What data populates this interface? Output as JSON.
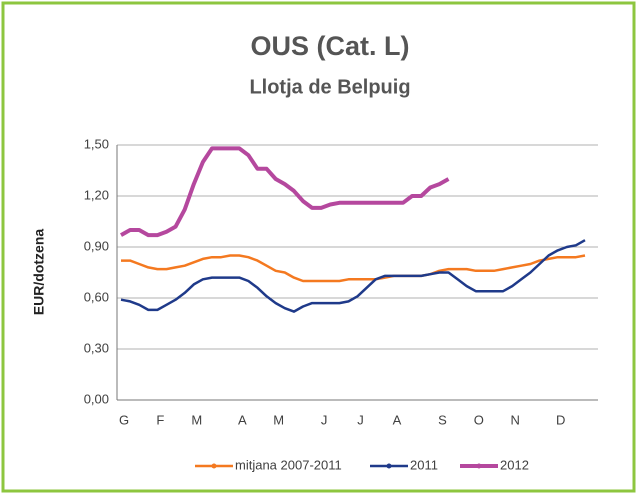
{
  "chart_data": {
    "type": "line",
    "title": "OUS (Cat. L)",
    "subtitle": "Llotja de Belpuig",
    "y_label": "EUR/dotzena",
    "categories": [
      "G",
      null,
      null,
      null,
      "F",
      null,
      null,
      null,
      "M",
      null,
      null,
      null,
      null,
      "A",
      null,
      null,
      null,
      "M",
      null,
      null,
      null,
      null,
      "J",
      null,
      null,
      null,
      "J",
      null,
      null,
      null,
      "A",
      null,
      null,
      null,
      null,
      "S",
      null,
      null,
      null,
      "O",
      null,
      null,
      null,
      "N",
      null,
      null,
      null,
      null,
      "D",
      null,
      null,
      null
    ],
    "series": [
      {
        "name": "mitjana 2007-2011",
        "color": "#f47920",
        "values": [
          0.82,
          0.82,
          0.8,
          0.78,
          0.77,
          0.77,
          0.78,
          0.79,
          0.81,
          0.83,
          0.84,
          0.84,
          0.85,
          0.85,
          0.84,
          0.82,
          0.79,
          0.76,
          0.75,
          0.72,
          0.7,
          0.7,
          0.7,
          0.7,
          0.7,
          0.71,
          0.71,
          0.71,
          0.71,
          0.72,
          0.73,
          0.73,
          0.73,
          0.73,
          0.74,
          0.76,
          0.77,
          0.77,
          0.77,
          0.76,
          0.76,
          0.76,
          0.77,
          0.78,
          0.79,
          0.8,
          0.82,
          0.83,
          0.84,
          0.84,
          0.84,
          0.85
        ]
      },
      {
        "name": "2011",
        "color": "#1f3a8a",
        "values": [
          0.59,
          0.58,
          0.56,
          0.53,
          0.53,
          0.56,
          0.59,
          0.63,
          0.68,
          0.71,
          0.72,
          0.72,
          0.72,
          0.72,
          0.7,
          0.66,
          0.61,
          0.57,
          0.54,
          0.52,
          0.55,
          0.57,
          0.57,
          0.57,
          0.57,
          0.58,
          0.61,
          0.66,
          0.71,
          0.73,
          0.73,
          0.73,
          0.73,
          0.73,
          0.74,
          0.75,
          0.75,
          0.71,
          0.67,
          0.64,
          0.64,
          0.64,
          0.64,
          0.67,
          0.71,
          0.75,
          0.8,
          0.85,
          0.88,
          0.9,
          0.91,
          0.94
        ]
      },
      {
        "name": "2012",
        "color": "#b5489e",
        "values": [
          0.97,
          1.0,
          1.0,
          0.97,
          0.97,
          0.99,
          1.02,
          1.12,
          1.27,
          1.4,
          1.48,
          1.48,
          1.48,
          1.48,
          1.44,
          1.36,
          1.36,
          1.3,
          1.27,
          1.23,
          1.17,
          1.13,
          1.13,
          1.15,
          1.16,
          1.16,
          1.16,
          1.16,
          1.16,
          1.16,
          1.16,
          1.16,
          1.2,
          1.2,
          1.25,
          1.27,
          1.3,
          null,
          null,
          null,
          null,
          null,
          null,
          null,
          null,
          null,
          null,
          null,
          null,
          null,
          null,
          null
        ]
      }
    ],
    "ylim": [
      0,
      1.5
    ],
    "yticks": [
      {
        "value": 0,
        "label": "0,00"
      },
      {
        "value": 0.3,
        "label": "0,30"
      },
      {
        "value": 0.6,
        "label": "0,60"
      },
      {
        "value": 0.9,
        "label": "0,90"
      },
      {
        "value": 1.2,
        "label": "1,20"
      },
      {
        "value": 1.5,
        "label": "1,50"
      }
    ],
    "grid": true,
    "legend": "bottom"
  }
}
